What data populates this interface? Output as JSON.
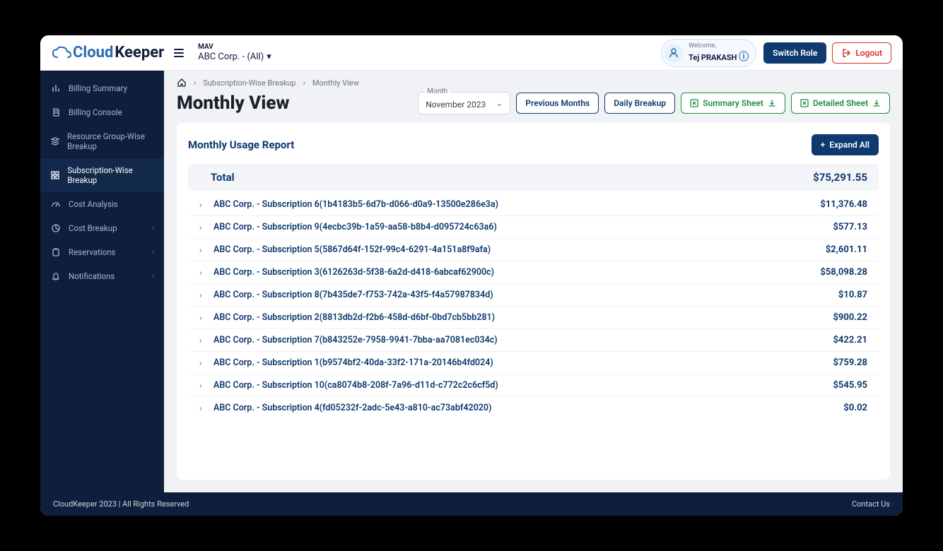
{
  "brand": {
    "part1": "Cloud",
    "part2": "Keeper"
  },
  "org": {
    "label": "MAV",
    "value": "ABC Corp. - (All)"
  },
  "user": {
    "welcome": "Welcome,",
    "name": "Tej PRAKASH"
  },
  "topbar": {
    "switch_role": "Switch Role",
    "logout": "Logout"
  },
  "sidebar": {
    "items": [
      {
        "label": "Billing Summary",
        "icon": "bars",
        "active": false,
        "expandable": false
      },
      {
        "label": "Billing Console",
        "icon": "doc",
        "active": false,
        "expandable": false
      },
      {
        "label": "Resource Group-Wise Breakup",
        "icon": "stack",
        "active": false,
        "expandable": false
      },
      {
        "label": "Subscription-Wise Breakup",
        "icon": "grid",
        "active": true,
        "expandable": false
      },
      {
        "label": "Cost Analysis",
        "icon": "gauge",
        "active": false,
        "expandable": false
      },
      {
        "label": "Cost Breakup",
        "icon": "pie",
        "active": false,
        "expandable": true
      },
      {
        "label": "Reservations",
        "icon": "clip",
        "active": false,
        "expandable": true
      },
      {
        "label": "Notifications",
        "icon": "bell",
        "active": false,
        "expandable": true
      }
    ]
  },
  "breadcrumb": {
    "a": "Subscription-Wise Breakup",
    "b": "Monthly View"
  },
  "page": {
    "title": "Monthly View"
  },
  "month": {
    "label": "Month",
    "value": "November 2023"
  },
  "buttons": {
    "previous": "Previous Months",
    "daily": "Daily Breakup",
    "summary": "Summary Sheet",
    "detailed": "Detailed Sheet",
    "expand_all": "Expand All"
  },
  "report": {
    "title": "Monthly Usage Report",
    "total_label": "Total",
    "total_amount": "$75,291.55",
    "rows": [
      {
        "name": "ABC Corp. - Subscription 6(1b4183b5-6d7b-d066-d0a9-13500e286e3a)",
        "amount": "$11,376.48"
      },
      {
        "name": "ABC Corp. - Subscription 9(4ecbc39b-1a59-aa58-b8b4-d095724c63a6)",
        "amount": "$577.13"
      },
      {
        "name": "ABC Corp. - Subscription 5(5867d64f-152f-99c4-6291-4a151a8f9afa)",
        "amount": "$2,601.11"
      },
      {
        "name": "ABC Corp. - Subscription 3(6126263d-5f38-6a2d-d418-6abcaf62900c)",
        "amount": "$58,098.28"
      },
      {
        "name": "ABC Corp. - Subscription 8(7b435de7-f753-742a-43f5-f4a57987834d)",
        "amount": "$10.87"
      },
      {
        "name": "ABC Corp. - Subscription 2(8813db2d-f2b6-458d-d6bf-0bd7cb5bb281)",
        "amount": "$900.22"
      },
      {
        "name": "ABC Corp. - Subscription 7(b843252e-7958-9941-7bba-aa7081ec034c)",
        "amount": "$422.21"
      },
      {
        "name": "ABC Corp. - Subscription 1(b9574bf2-40da-33f2-171a-20146b4fd024)",
        "amount": "$759.28"
      },
      {
        "name": "ABC Corp. - Subscription 10(ca8074b8-208f-7a96-d11d-c772c2c6cf5d)",
        "amount": "$545.95"
      },
      {
        "name": "ABC Corp. - Subscription 4(fd05232f-2adc-5e43-a810-ac73abf42020)",
        "amount": "$0.02"
      }
    ]
  },
  "footer": {
    "copyright": "CloudKeeper 2023 | All Rights Reserved",
    "contact": "Contact Us"
  },
  "colors": {
    "navy": "#0f1e3d",
    "blue": "#0e3a6f",
    "green": "#1a8f3c",
    "red": "#d93025"
  }
}
